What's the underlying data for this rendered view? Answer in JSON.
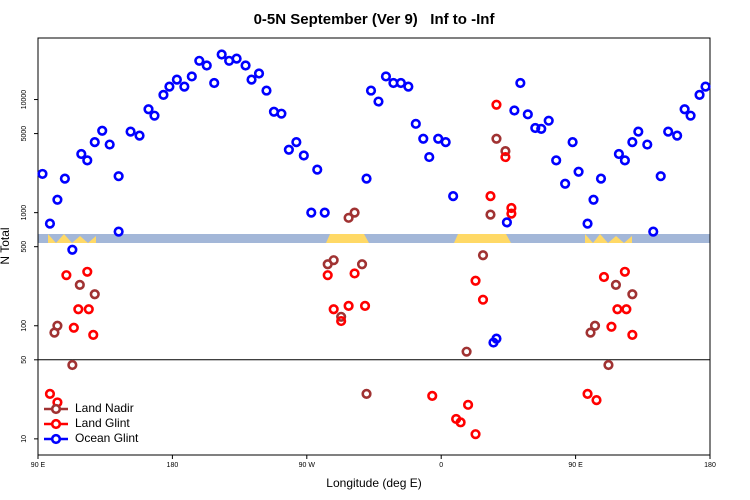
{
  "chart_data": {
    "type": "scatter",
    "title": "0-5N September (Ver 9)   Inf to -Inf",
    "xlabel": "Longitude (deg E)",
    "ylabel": "N Total",
    "xlim": [
      90,
      540
    ],
    "xticks": [
      {
        "value": 90,
        "label": "90 E"
      },
      180,
      {
        "value": 270,
        "label": "90 W"
      },
      {
        "value": 360,
        "label": "0"
      },
      {
        "value": 450,
        "label": "90 E"
      },
      {
        "value": 540,
        "label": "180"
      }
    ],
    "ylim": [
      7.2,
      35000
    ],
    "log_y": true,
    "yticks": [
      10,
      50,
      100,
      500,
      1000,
      5000,
      10000
    ],
    "hline": 50,
    "legend": "bottom-left",
    "series": [
      {
        "name": "Land Nadir",
        "color": "#a03232",
        "x": [
          101,
          103,
          113,
          118,
          128,
          284,
          288,
          293,
          298,
          302,
          307,
          310,
          377,
          388,
          393,
          397,
          403,
          460,
          463,
          472,
          477,
          488
        ],
        "values": [
          87,
          100,
          45,
          230,
          190,
          350,
          380,
          120,
          900,
          1000,
          350,
          25,
          59,
          420,
          960,
          4500,
          3500,
          87,
          100,
          45,
          230,
          190
        ]
      },
      {
        "name": "Land Glint",
        "color": "#ff0000",
        "x": [
          98,
          103,
          109,
          114,
          117,
          123,
          124,
          127,
          284,
          288,
          293,
          298,
          302,
          309,
          354,
          370,
          373,
          378,
          383,
          383,
          388,
          393,
          397,
          403,
          407,
          407,
          458,
          464,
          469,
          474,
          478,
          483,
          484,
          488
        ],
        "values": [
          25,
          21,
          280,
          96,
          140,
          300,
          140,
          83,
          280,
          140,
          110,
          150,
          290,
          150,
          24,
          15,
          14,
          20,
          11,
          250,
          170,
          1400,
          9000,
          3100,
          1100,
          980,
          25,
          22,
          270,
          98,
          140,
          300,
          140,
          83
        ]
      },
      {
        "name": "Ocean Glint",
        "color": "#0000ff",
        "x": [
          93,
          98,
          103,
          108,
          113,
          119,
          123,
          128,
          133,
          138,
          144,
          144,
          152,
          158,
          164,
          168,
          174,
          178,
          183,
          188,
          193,
          198,
          203,
          208,
          213,
          218,
          223,
          229,
          233,
          238,
          243,
          248,
          253,
          258,
          263,
          268,
          277,
          273,
          282,
          310,
          313,
          318,
          323,
          328,
          333,
          338,
          343,
          348,
          352,
          358,
          363,
          368,
          395,
          397,
          404,
          409,
          413,
          418,
          423,
          427,
          432,
          437,
          443,
          448,
          452,
          458,
          462,
          467,
          479,
          483,
          488,
          492,
          498,
          502,
          507,
          512,
          518,
          523,
          527,
          533,
          537
        ],
        "values": [
          2200,
          800,
          1300,
          2000,
          470,
          3300,
          2900,
          4200,
          5300,
          4000,
          2100,
          680,
          5200,
          4800,
          8200,
          7200,
          11000,
          13000,
          15000,
          13000,
          16000,
          22000,
          20000,
          14000,
          25000,
          22000,
          23000,
          20000,
          15000,
          17000,
          12000,
          7800,
          7500,
          3600,
          4200,
          3200,
          2400,
          1000,
          1000,
          2000,
          12000,
          9600,
          16000,
          14000,
          14000,
          13000,
          6100,
          4500,
          3100,
          4500,
          4200,
          1400,
          71,
          77,
          820,
          8000,
          14000,
          7400,
          5600,
          5500,
          6500,
          2900,
          1800,
          4200,
          2300,
          800,
          1300,
          2000,
          3300,
          2900,
          4200,
          5200,
          4000,
          680,
          2100,
          5200,
          4800,
          8200,
          7200,
          11000,
          13000
        ]
      }
    ]
  }
}
